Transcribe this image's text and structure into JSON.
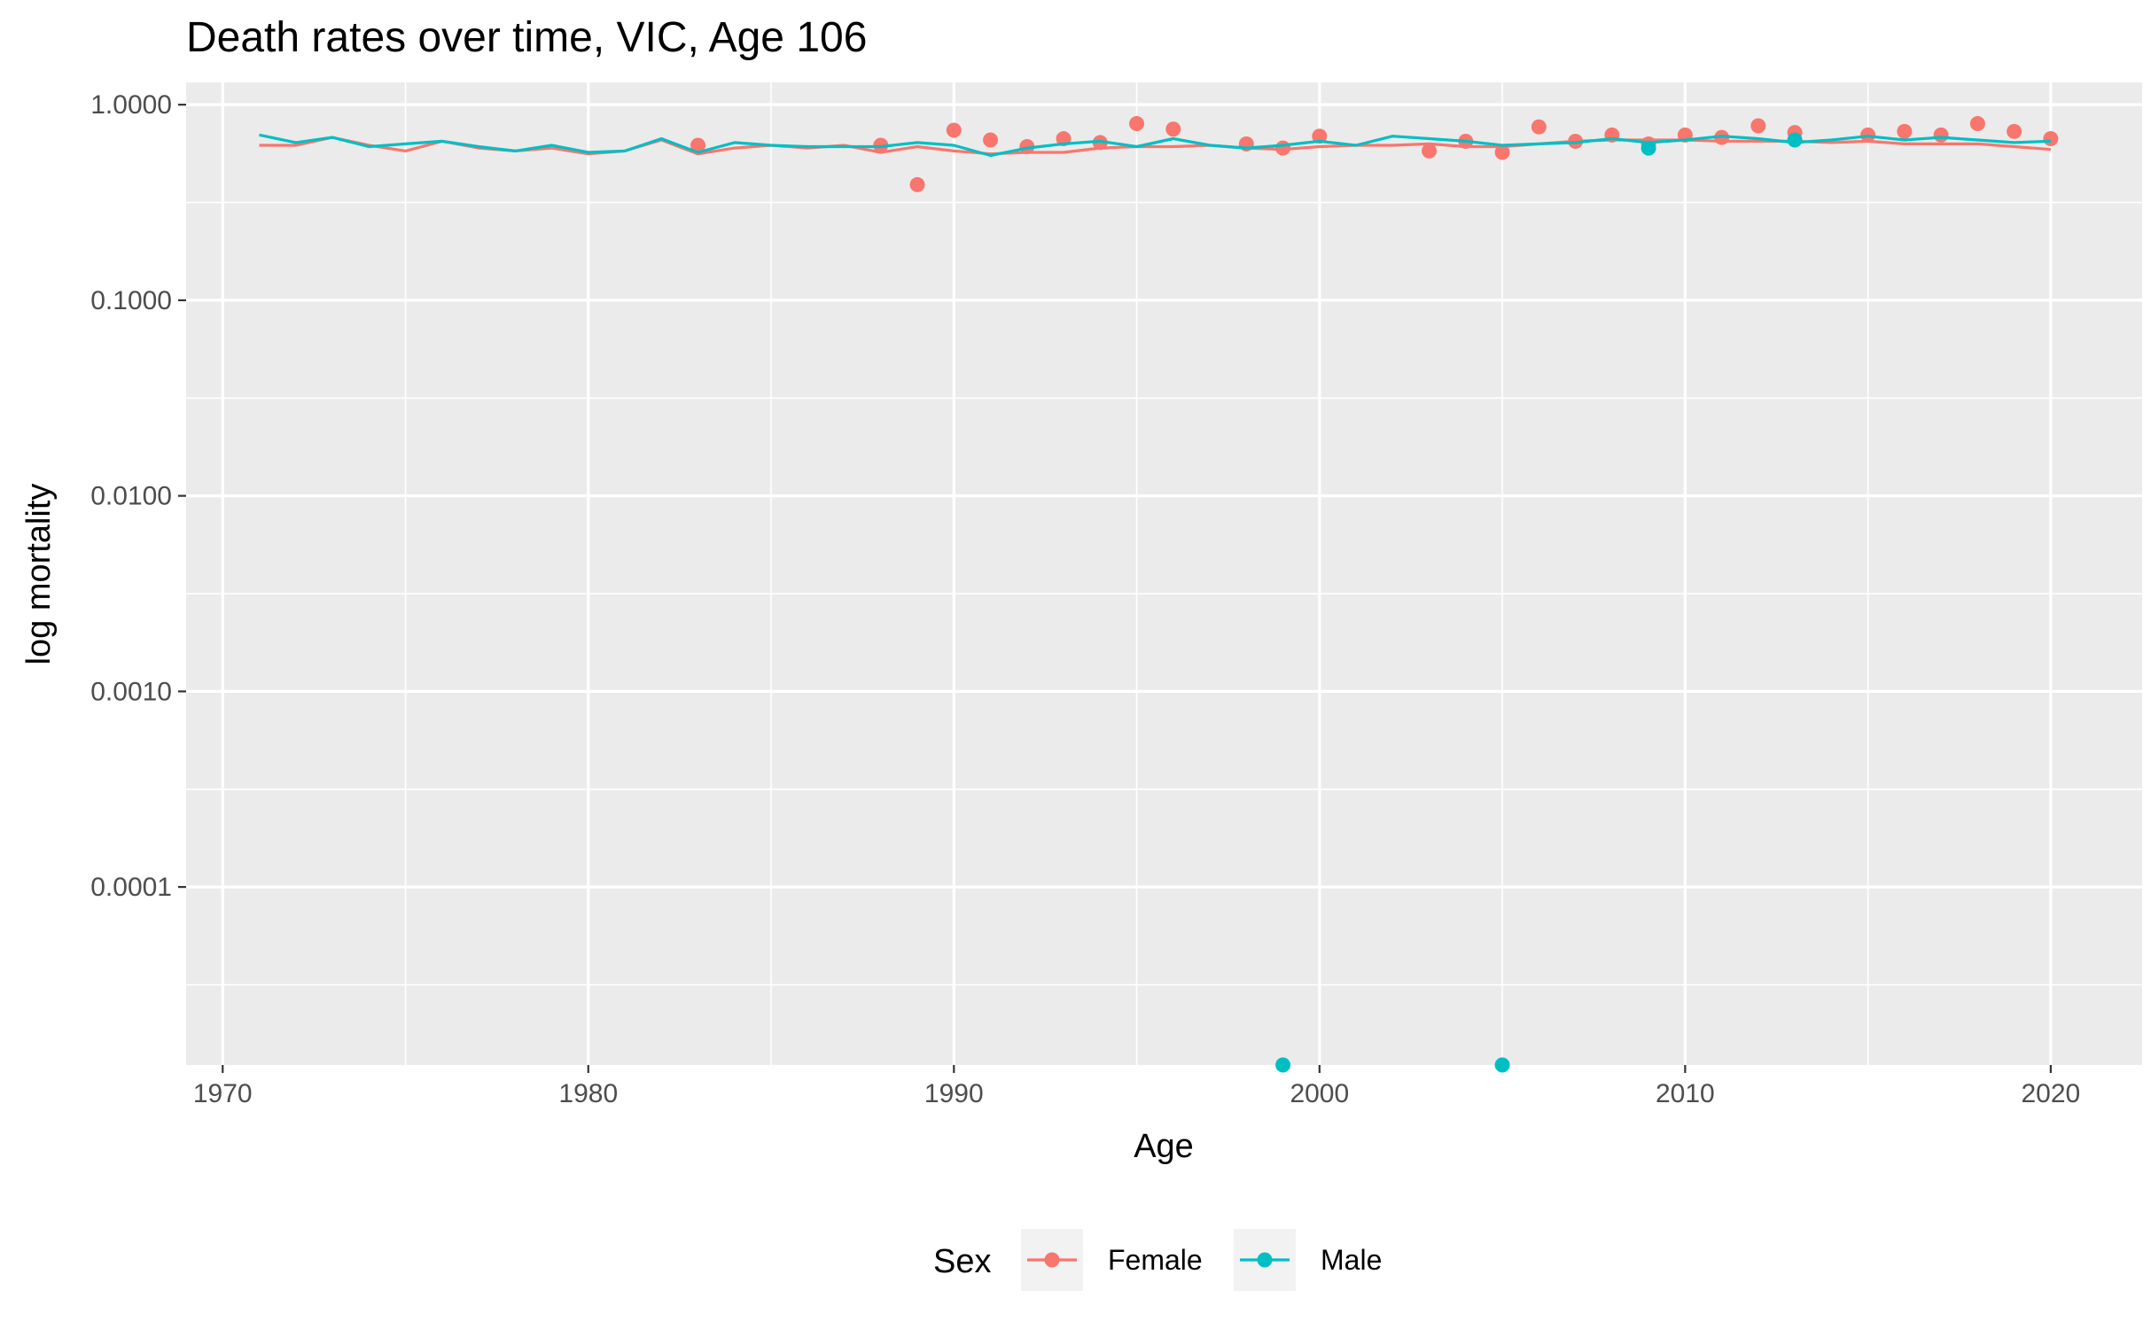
{
  "chart_data": {
    "type": "line",
    "title": "Death rates over time, VIC, Age 106",
    "xlabel": "Age",
    "ylabel": "log mortality",
    "y_scale": "log10",
    "xlim": [
      1969,
      2022.5
    ],
    "ylim": [
      1.23e-05,
      1.3
    ],
    "x_ticks": [
      1970,
      1980,
      1990,
      2000,
      2010,
      2020
    ],
    "x_tick_labels": [
      "1970",
      "1980",
      "1990",
      "2000",
      "2010",
      "2020"
    ],
    "y_ticks": [
      1,
      0.1,
      0.01,
      0.001,
      0.0001
    ],
    "y_tick_labels": [
      "1.0000",
      "0.1000",
      "0.0100",
      "0.0010",
      "0.0001"
    ],
    "y_minor_ticks": [
      0.316,
      0.0316,
      0.00316,
      0.000316,
      3.16e-05
    ],
    "grid": true,
    "legend": {
      "title": "Sex",
      "position": "bottom",
      "entries": [
        "Female",
        "Male"
      ]
    },
    "colors": {
      "Female": "#F8766D",
      "Male": "#00BFC4",
      "panel": "#EBEBEB",
      "grid": "#FFFFFF"
    },
    "series": [
      {
        "name": "Female",
        "line": {
          "x": [
            1971,
            1972,
            1973,
            1974,
            1975,
            1976,
            1977,
            1978,
            1979,
            1980,
            1981,
            1982,
            1983,
            1984,
            1985,
            1986,
            1987,
            1988,
            1989,
            1990,
            1991,
            1992,
            1993,
            1994,
            1995,
            1996,
            1997,
            1998,
            1999,
            2000,
            2001,
            2002,
            2003,
            2004,
            2005,
            2006,
            2007,
            2008,
            2009,
            2010,
            2011,
            2012,
            2013,
            2014,
            2015,
            2016,
            2017,
            2018,
            2019,
            2020
          ],
          "y": [
            0.62,
            0.62,
            0.68,
            0.62,
            0.58,
            0.65,
            0.6,
            0.58,
            0.6,
            0.56,
            0.58,
            0.66,
            0.56,
            0.6,
            0.62,
            0.6,
            0.62,
            0.57,
            0.61,
            0.58,
            0.56,
            0.57,
            0.57,
            0.6,
            0.61,
            0.61,
            0.62,
            0.6,
            0.59,
            0.61,
            0.62,
            0.62,
            0.63,
            0.61,
            0.61,
            0.63,
            0.65,
            0.66,
            0.66,
            0.66,
            0.65,
            0.65,
            0.65,
            0.64,
            0.65,
            0.63,
            0.63,
            0.63,
            0.61,
            0.59
          ]
        },
        "points": {
          "x": [
            1983,
            1988,
            1989,
            1990,
            1991,
            1992,
            1993,
            1994,
            1995,
            1996,
            1998,
            1999,
            2000,
            2003,
            2004,
            2005,
            2006,
            2007,
            2008,
            2009,
            2010,
            2011,
            2012,
            2013,
            2015,
            2016,
            2017,
            2018,
            2019,
            2020
          ],
          "y": [
            0.62,
            0.62,
            0.39,
            0.74,
            0.66,
            0.61,
            0.67,
            0.64,
            0.8,
            0.75,
            0.63,
            0.6,
            0.69,
            0.58,
            0.65,
            0.57,
            0.77,
            0.65,
            0.7,
            0.63,
            0.7,
            0.68,
            0.78,
            0.72,
            0.7,
            0.73,
            0.7,
            0.8,
            0.73,
            0.67
          ]
        }
      },
      {
        "name": "Male",
        "line": {
          "x": [
            1971,
            1972,
            1973,
            1974,
            1975,
            1976,
            1977,
            1978,
            1979,
            1980,
            1981,
            1982,
            1983,
            1984,
            1985,
            1986,
            1987,
            1988,
            1989,
            1990,
            1991,
            1992,
            1993,
            1994,
            1995,
            1996,
            1997,
            1998,
            1999,
            2000,
            2001,
            2002,
            2003,
            2004,
            2005,
            2006,
            2007,
            2008,
            2009,
            2010,
            2011,
            2012,
            2013,
            2014,
            2015,
            2016,
            2017,
            2018,
            2019,
            2020
          ],
          "y": [
            0.7,
            0.64,
            0.68,
            0.61,
            0.63,
            0.65,
            0.61,
            0.58,
            0.62,
            0.57,
            0.58,
            0.67,
            0.57,
            0.64,
            0.62,
            0.61,
            0.61,
            0.61,
            0.64,
            0.62,
            0.55,
            0.6,
            0.63,
            0.65,
            0.61,
            0.67,
            0.62,
            0.6,
            0.62,
            0.65,
            0.62,
            0.69,
            0.67,
            0.65,
            0.62,
            0.63,
            0.64,
            0.67,
            0.64,
            0.66,
            0.69,
            0.67,
            0.64,
            0.66,
            0.69,
            0.66,
            0.68,
            0.66,
            0.64,
            0.65
          ]
        },
        "points": {
          "x": [
            1999,
            2005,
            2009,
            2013
          ],
          "y": [
            1.23e-05,
            1.23e-05,
            0.6,
            0.66
          ]
        }
      }
    ]
  }
}
